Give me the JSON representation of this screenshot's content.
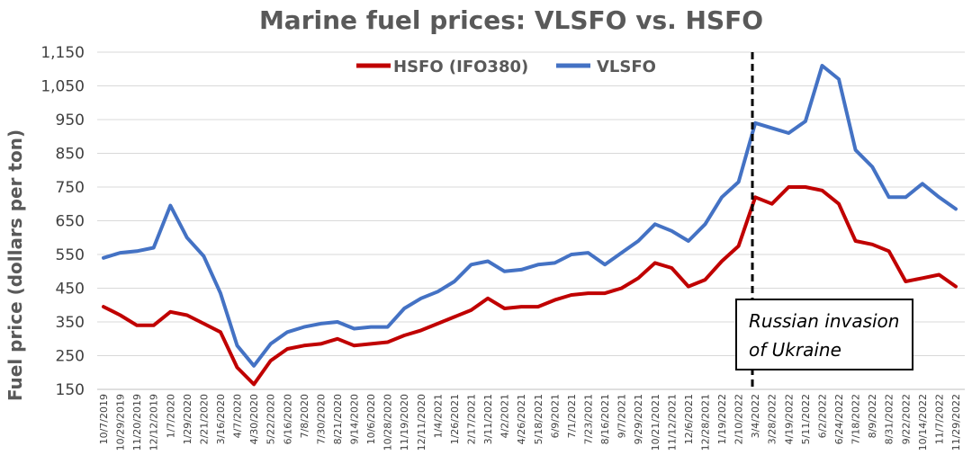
{
  "chart_data": {
    "type": "line",
    "title": "Marine fuel prices: VLSFO vs. HSFO",
    "xlabel": "",
    "ylabel": "Fuel price  (dollars per ton)",
    "ylim": [
      150,
      1150
    ],
    "yticks": [
      150,
      250,
      350,
      450,
      550,
      650,
      750,
      850,
      950,
      1050,
      1150
    ],
    "ytick_labels": [
      "150",
      "250",
      "350",
      "450",
      "550",
      "650",
      "750",
      "850",
      "950",
      "1,050",
      "1,150"
    ],
    "grid": "horizontal",
    "legend_position": "top-center",
    "categories": [
      "10/7/2019",
      "10/29/2019",
      "11/20/2019",
      "12/12/2019",
      "1/7/2020",
      "1/29/2020",
      "2/21/2020",
      "3/16/2020",
      "4/7/2020",
      "4/30/2020",
      "5/22/2020",
      "6/16/2020",
      "7/8/2020",
      "7/30/2020",
      "8/21/2020",
      "9/14/2020",
      "10/6/2020",
      "10/28/2020",
      "11/19/2020",
      "12/11/2020",
      "1/4/2021",
      "1/26/2021",
      "2/17/2021",
      "3/11/2021",
      "4/2/2021",
      "4/26/2021",
      "5/18/2021",
      "6/9/2021",
      "7/1/2021",
      "7/23/2021",
      "8/16/2021",
      "9/7/2021",
      "9/29/2021",
      "10/21/2021",
      "11/12/2021",
      "12/6/2021",
      "12/28/2021",
      "1/19/2022",
      "2/10/2022",
      "3/4/2022",
      "3/28/2022",
      "4/19/2022",
      "5/11/2022",
      "6/2/2022",
      "6/24/2022",
      "7/18/2022",
      "8/9/2022",
      "8/31/2022",
      "9/22/2022",
      "10/14/2022",
      "11/7/2022",
      "11/29/2022"
    ],
    "series": [
      {
        "name": "HSFO (IFO380)",
        "color": "#c00000",
        "values": [
          395,
          370,
          340,
          340,
          380,
          370,
          345,
          320,
          215,
          165,
          235,
          270,
          280,
          285,
          300,
          280,
          285,
          290,
          310,
          325,
          345,
          365,
          385,
          420,
          390,
          395,
          395,
          415,
          430,
          435,
          435,
          450,
          480,
          525,
          510,
          455,
          475,
          530,
          575,
          720,
          700,
          750,
          750,
          740,
          700,
          590,
          580,
          560,
          470,
          480,
          490,
          455
        ]
      },
      {
        "name": "VLSFO",
        "color": "#4472c4",
        "values": [
          540,
          555,
          560,
          570,
          695,
          600,
          545,
          435,
          280,
          220,
          285,
          320,
          335,
          345,
          350,
          330,
          335,
          335,
          390,
          420,
          440,
          470,
          520,
          530,
          500,
          505,
          520,
          525,
          550,
          555,
          520,
          555,
          590,
          640,
          620,
          590,
          640,
          720,
          765,
          940,
          925,
          910,
          945,
          1110,
          1070,
          860,
          810,
          720,
          720,
          760,
          720,
          685
        ]
      }
    ],
    "annotations": [
      {
        "label": "Russian invasion\nof Ukraine",
        "at_category": "2/24/2022",
        "style": "dashed vertical line"
      }
    ]
  }
}
